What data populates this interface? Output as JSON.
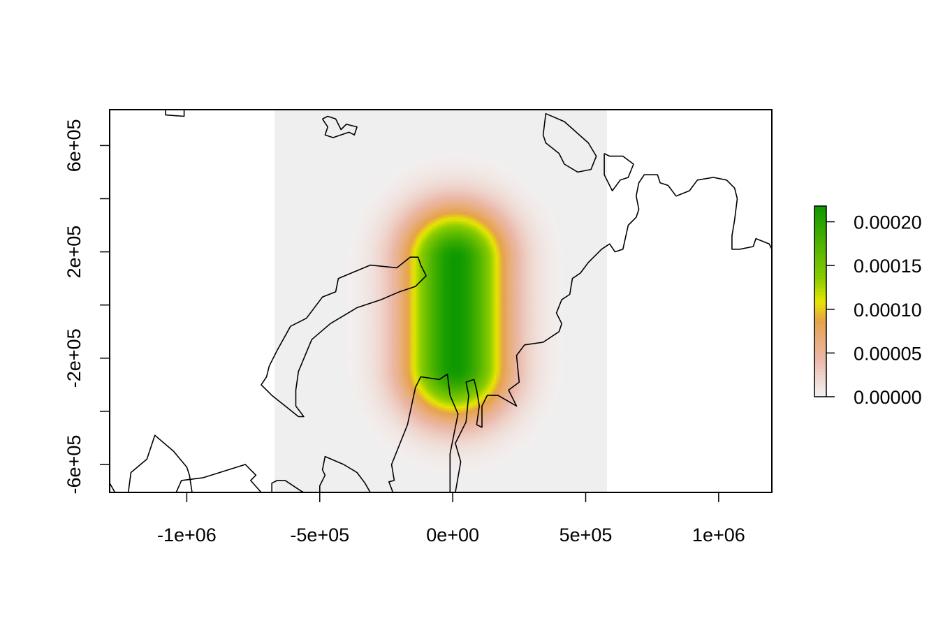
{
  "chart_data": {
    "type": "heatmap",
    "title": "",
    "xlabel": "",
    "ylabel": "",
    "xlim": [
      -1290000,
      1200000
    ],
    "ylim": [
      -705000,
      735000
    ],
    "x_ticks": [
      {
        "value": -1000000,
        "label": "-1e+06"
      },
      {
        "value": -500000,
        "label": "-5e+05"
      },
      {
        "value": 0,
        "label": "0e+00"
      },
      {
        "value": 500000,
        "label": "5e+05"
      },
      {
        "value": 1000000,
        "label": "1e+06"
      }
    ],
    "y_ticks": [
      {
        "value": -600000,
        "label": "-6e+05"
      },
      {
        "value": -400000,
        "label": ""
      },
      {
        "value": -200000,
        "label": "-2e+05"
      },
      {
        "value": 0,
        "label": ""
      },
      {
        "value": 200000,
        "label": "2e+05"
      },
      {
        "value": 400000,
        "label": ""
      },
      {
        "value": 600000,
        "label": "6e+05"
      }
    ],
    "raster_extent": {
      "x": [
        -670000,
        580000
      ],
      "y": [
        -705000,
        735000
      ]
    },
    "raster_background": "#efefef",
    "density": {
      "peak_value": 0.000218,
      "center": [
        10000,
        -30000
      ],
      "core_half_length_y": 200000,
      "spread": 200000,
      "cutoff": 2e-06
    },
    "legend": {
      "position": "right",
      "min": 0,
      "max": 0.000218,
      "ticks": [
        {
          "value": 0,
          "label": "0.00000"
        },
        {
          "value": 5e-05,
          "label": "0.00005"
        },
        {
          "value": 0.0001,
          "label": "0.00010"
        },
        {
          "value": 0.00015,
          "label": "0.00015"
        },
        {
          "value": 0.0002,
          "label": "0.00020"
        }
      ]
    },
    "color_scale": [
      {
        "stop": 0.0,
        "color": "#f2f2f2"
      },
      {
        "stop": 0.2,
        "color": "#ebb8a8"
      },
      {
        "stop": 0.4,
        "color": "#e6a24a"
      },
      {
        "stop": 0.5,
        "color": "#e6e600"
      },
      {
        "stop": 0.62,
        "color": "#8bcc00"
      },
      {
        "stop": 1.0,
        "color": "#0d9900"
      }
    ],
    "coastlines": [
      [
        [
          -1080000,
          735000
        ],
        [
          -1080000,
          715000
        ],
        [
          -1010000,
          710000
        ],
        [
          -1010000,
          735000
        ]
      ],
      [
        [
          -490000,
          700000
        ],
        [
          -470000,
          670000
        ],
        [
          -480000,
          640000
        ],
        [
          -450000,
          630000
        ],
        [
          -390000,
          650000
        ],
        [
          -370000,
          640000
        ],
        [
          -360000,
          670000
        ],
        [
          -400000,
          680000
        ],
        [
          -420000,
          660000
        ],
        [
          -440000,
          700000
        ],
        [
          -470000,
          710000
        ],
        [
          -490000,
          700000
        ]
      ],
      [
        [
          -225000,
          -705000
        ],
        [
          -240000,
          -665000
        ],
        [
          -220000,
          -660000
        ],
        [
          -230000,
          -600000
        ],
        [
          -170000,
          -450000
        ],
        [
          -140000,
          -310000
        ],
        [
          -120000,
          -270000
        ],
        [
          -50000,
          -280000
        ],
        [
          -20000,
          -260000
        ],
        [
          -10000,
          -340000
        ],
        [
          20000,
          -410000
        ],
        [
          -10000,
          -560000
        ],
        [
          -10000,
          -705000
        ]
      ],
      [
        [
          10000,
          -705000
        ],
        [
          30000,
          -590000
        ],
        [
          10000,
          -520000
        ],
        [
          50000,
          -440000
        ],
        [
          60000,
          -340000
        ],
        [
          50000,
          -290000
        ],
        [
          80000,
          -280000
        ],
        [
          90000,
          -320000
        ],
        [
          100000,
          -380000
        ],
        [
          90000,
          -450000
        ],
        [
          110000,
          -460000
        ],
        [
          110000,
          -380000
        ],
        [
          130000,
          -340000
        ],
        [
          170000,
          -340000
        ],
        [
          240000,
          -380000
        ],
        [
          210000,
          -320000
        ],
        [
          250000,
          -290000
        ],
        [
          240000,
          -190000
        ],
        [
          270000,
          -150000
        ],
        [
          340000,
          -140000
        ],
        [
          400000,
          -100000
        ],
        [
          410000,
          -70000
        ],
        [
          390000,
          -30000
        ],
        [
          410000,
          20000
        ],
        [
          440000,
          40000
        ],
        [
          450000,
          100000
        ],
        [
          480000,
          120000
        ],
        [
          510000,
          160000
        ],
        [
          540000,
          190000
        ],
        [
          560000,
          210000
        ],
        [
          590000,
          230000
        ],
        [
          610000,
          200000
        ],
        [
          640000,
          210000
        ],
        [
          660000,
          300000
        ],
        [
          690000,
          330000
        ],
        [
          700000,
          360000
        ],
        [
          690000,
          410000
        ],
        [
          700000,
          460000
        ],
        [
          720000,
          490000
        ],
        [
          770000,
          490000
        ],
        [
          780000,
          460000
        ],
        [
          810000,
          450000
        ],
        [
          840000,
          410000
        ],
        [
          890000,
          430000
        ],
        [
          920000,
          470000
        ],
        [
          980000,
          480000
        ],
        [
          1030000,
          470000
        ],
        [
          1060000,
          440000
        ],
        [
          1070000,
          400000
        ],
        [
          1060000,
          320000
        ],
        [
          1050000,
          260000
        ],
        [
          1050000,
          210000
        ],
        [
          1080000,
          210000
        ],
        [
          1130000,
          220000
        ],
        [
          1140000,
          250000
        ],
        [
          1190000,
          230000
        ],
        [
          1200000,
          210000
        ]
      ],
      [
        [
          -680000,
          -705000
        ],
        [
          -680000,
          -670000
        ],
        [
          -660000,
          -660000
        ],
        [
          -630000,
          -660000
        ],
        [
          -570000,
          -700000
        ],
        [
          -560000,
          -705000
        ]
      ],
      [
        [
          -500000,
          -705000
        ],
        [
          -500000,
          -680000
        ],
        [
          -480000,
          -640000
        ],
        [
          -490000,
          -620000
        ],
        [
          -480000,
          -570000
        ],
        [
          -410000,
          -600000
        ],
        [
          -360000,
          -630000
        ],
        [
          -330000,
          -670000
        ],
        [
          -310000,
          -705000
        ]
      ],
      [
        [
          -1290000,
          -705000
        ],
        [
          -1290000,
          -670000
        ],
        [
          -1270000,
          -705000
        ]
      ],
      [
        [
          -1220000,
          -705000
        ],
        [
          -1210000,
          -630000
        ],
        [
          -1150000,
          -580000
        ],
        [
          -1120000,
          -490000
        ],
        [
          -1050000,
          -550000
        ],
        [
          -1000000,
          -610000
        ],
        [
          -990000,
          -640000
        ],
        [
          -980000,
          -705000
        ]
      ],
      [
        [
          -1040000,
          -705000
        ],
        [
          -1020000,
          -660000
        ],
        [
          -940000,
          -650000
        ],
        [
          -780000,
          -600000
        ],
        [
          -760000,
          -620000
        ],
        [
          -740000,
          -640000
        ],
        [
          -760000,
          -660000
        ],
        [
          -720000,
          -705000
        ]
      ],
      [
        [
          -700000,
          -270000
        ],
        [
          -720000,
          -300000
        ],
        [
          -680000,
          -340000
        ],
        [
          -630000,
          -380000
        ],
        [
          -580000,
          -420000
        ],
        [
          -560000,
          -420000
        ],
        [
          -590000,
          -380000
        ],
        [
          -590000,
          -320000
        ],
        [
          -580000,
          -250000
        ],
        [
          -530000,
          -130000
        ],
        [
          -460000,
          -70000
        ],
        [
          -360000,
          -10000
        ],
        [
          -270000,
          20000
        ],
        [
          -200000,
          50000
        ],
        [
          -140000,
          70000
        ],
        [
          -100000,
          110000
        ],
        [
          -120000,
          150000
        ],
        [
          -130000,
          180000
        ],
        [
          -160000,
          180000
        ],
        [
          -210000,
          140000
        ],
        [
          -310000,
          150000
        ],
        [
          -430000,
          100000
        ],
        [
          -440000,
          50000
        ],
        [
          -490000,
          30000
        ],
        [
          -550000,
          -50000
        ],
        [
          -610000,
          -80000
        ],
        [
          -660000,
          -170000
        ],
        [
          -690000,
          -230000
        ],
        [
          -700000,
          -270000
        ]
      ],
      [
        [
          340000,
          640000
        ],
        [
          350000,
          720000
        ],
        [
          420000,
          690000
        ],
        [
          510000,
          610000
        ],
        [
          540000,
          560000
        ],
        [
          520000,
          510000
        ],
        [
          470000,
          500000
        ],
        [
          420000,
          530000
        ],
        [
          400000,
          570000
        ],
        [
          350000,
          610000
        ],
        [
          340000,
          640000
        ]
      ],
      [
        [
          570000,
          570000
        ],
        [
          590000,
          560000
        ],
        [
          640000,
          560000
        ],
        [
          680000,
          530000
        ],
        [
          660000,
          480000
        ],
        [
          630000,
          470000
        ],
        [
          600000,
          430000
        ],
        [
          570000,
          490000
        ],
        [
          570000,
          570000
        ]
      ]
    ]
  }
}
